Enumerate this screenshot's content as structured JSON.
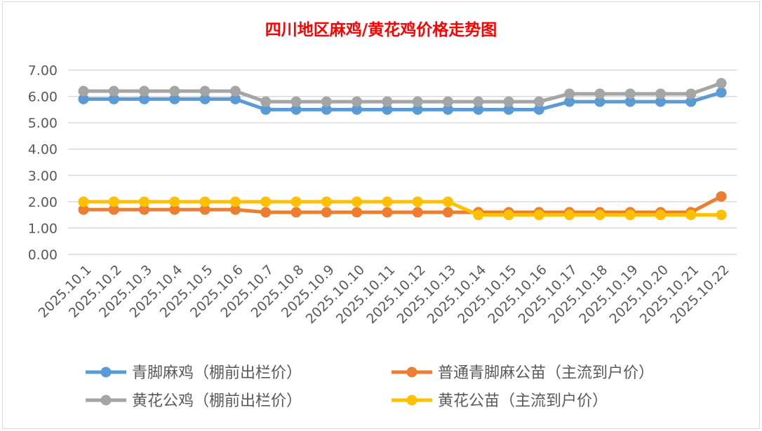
{
  "chart_data": {
    "type": "line",
    "title": "四川地区麻鸡/黄花鸡价格走势图",
    "title_color": "#ff0000",
    "categories": [
      "2025.10.1",
      "2025.10.2",
      "2025.10.3",
      "2025.10.4",
      "2025.10.5",
      "2025.10.6",
      "2025.10.7",
      "2025.10.8",
      "2025.10.9",
      "2025.10.10",
      "2025.10.11",
      "2025.10.12",
      "2025.10.13",
      "2025.10.14",
      "2025.10.15",
      "2025.10.16",
      "2025.10.17",
      "2025.10.18",
      "2025.10.19",
      "2025.10.20",
      "2025.10.21",
      "2025.10.22"
    ],
    "ylim": [
      0,
      7
    ],
    "yticks": [
      "0.00",
      "1.00",
      "2.00",
      "3.00",
      "4.00",
      "5.00",
      "6.00",
      "7.00"
    ],
    "grid": true,
    "legend_position": "bottom",
    "series": [
      {
        "name": "青脚麻鸡（棚前出栏价）",
        "color": "#5b9bd5",
        "values": [
          5.9,
          5.9,
          5.9,
          5.9,
          5.9,
          5.9,
          5.5,
          5.5,
          5.5,
          5.5,
          5.5,
          5.5,
          5.5,
          5.5,
          5.5,
          5.5,
          5.8,
          5.8,
          5.8,
          5.8,
          5.8,
          6.15
        ]
      },
      {
        "name": "普通青脚麻公苗（主流到户价）",
        "color": "#ed7d31",
        "values": [
          1.7,
          1.7,
          1.7,
          1.7,
          1.7,
          1.7,
          1.6,
          1.6,
          1.6,
          1.6,
          1.6,
          1.6,
          1.6,
          1.6,
          1.6,
          1.6,
          1.6,
          1.6,
          1.6,
          1.6,
          1.6,
          2.2
        ]
      },
      {
        "name": "黄花公鸡（棚前出栏价）",
        "color": "#a5a5a5",
        "values": [
          6.2,
          6.2,
          6.2,
          6.2,
          6.2,
          6.2,
          5.8,
          5.8,
          5.8,
          5.8,
          5.8,
          5.8,
          5.8,
          5.8,
          5.8,
          5.8,
          6.1,
          6.1,
          6.1,
          6.1,
          6.1,
          6.5
        ]
      },
      {
        "name": "黄花公苗（主流到户价）",
        "color": "#ffc000",
        "values": [
          2.0,
          2.0,
          2.0,
          2.0,
          2.0,
          2.0,
          2.0,
          2.0,
          2.0,
          2.0,
          2.0,
          2.0,
          2.0,
          1.5,
          1.5,
          1.5,
          1.5,
          1.5,
          1.5,
          1.5,
          1.5,
          1.5
        ]
      }
    ]
  }
}
